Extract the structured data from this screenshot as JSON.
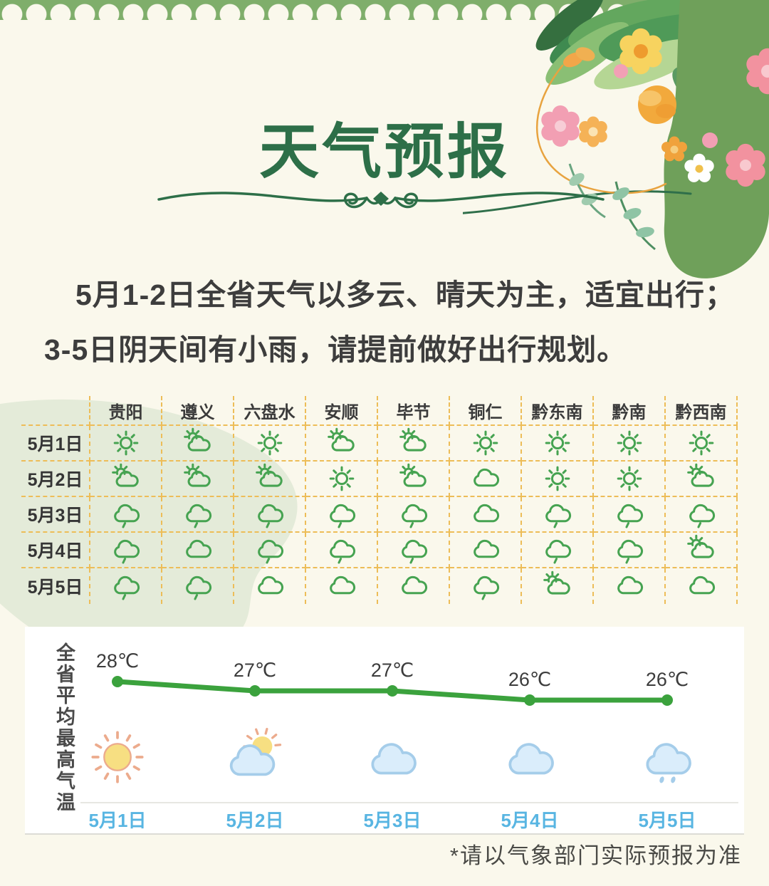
{
  "header": {
    "title": "天气预报"
  },
  "intro": {
    "line1": "5月1-2日全省天气以多云、晴天为主，适宜出行；",
    "line2": "3-5日阴天间有小雨，请提前做好出行规划。"
  },
  "chart_data": [
    {
      "type": "table",
      "columns": [
        "贵阳",
        "遵义",
        "六盘水",
        "安顺",
        "毕节",
        "铜仁",
        "黔东南",
        "黔南",
        "黔西南"
      ],
      "rows": [
        {
          "date": "5月1日",
          "conditions": [
            "晴",
            "多云",
            "晴",
            "多云",
            "多云",
            "晴",
            "晴",
            "晴",
            "晴"
          ]
        },
        {
          "date": "5月2日",
          "conditions": [
            "多云",
            "多云",
            "多云",
            "晴",
            "多云",
            "阴",
            "晴",
            "晴",
            "多云"
          ]
        },
        {
          "date": "5月3日",
          "conditions": [
            "小雨",
            "小雨",
            "小雨",
            "小雨",
            "小雨",
            "阴",
            "小雨",
            "小雨",
            "小雨"
          ]
        },
        {
          "date": "5月4日",
          "conditions": [
            "小雨",
            "阴",
            "小雨",
            "小雨",
            "小雨",
            "阴",
            "小雨",
            "小雨",
            "多云"
          ]
        },
        {
          "date": "5月5日",
          "conditions": [
            "小雨",
            "小雨",
            "阴",
            "阴",
            "阴",
            "小雨",
            "多云",
            "阴",
            "阴"
          ]
        }
      ],
      "grid_color": "#edbd58",
      "icon_color": "#46a351"
    },
    {
      "type": "line",
      "ylabel": "全省平均最高气温",
      "categories": [
        "5月1日",
        "5月2日",
        "5月3日",
        "5月4日",
        "5月5日"
      ],
      "series": [
        {
          "name": "全省平均最高气温",
          "values": [
            28,
            27,
            27,
            26,
            26
          ]
        }
      ],
      "point_labels": [
        "28℃",
        "27℃",
        "27℃",
        "26℃",
        "26℃"
      ],
      "icons": [
        "晴",
        "多云",
        "阴",
        "阴",
        "小雨"
      ],
      "ylim": [
        25,
        29
      ],
      "grid": false,
      "legend": "none",
      "line_color": "#3ba23d",
      "date_color": "#58b5e2"
    }
  ],
  "footer": {
    "note": "*请以气象部门实际预报为准"
  },
  "colors": {
    "page_bg": "#faf8ec",
    "scallop_green": "#7fae6b",
    "title_green": "#2d6f48",
    "blob_green": "#e4ebd9"
  }
}
